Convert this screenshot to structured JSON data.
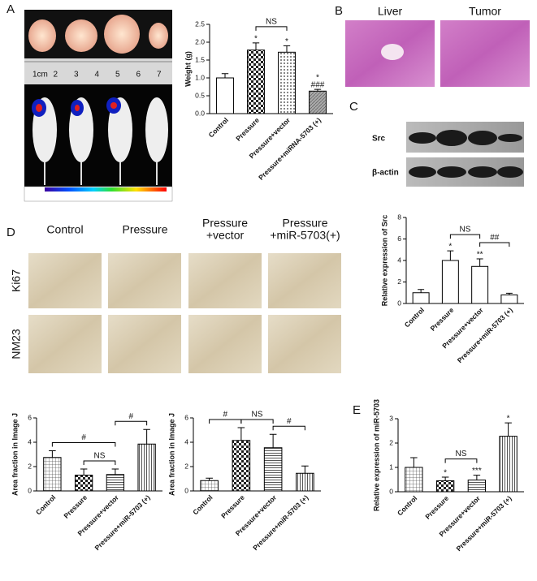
{
  "panel_labels": [
    "A",
    "B",
    "C",
    "D",
    "E"
  ],
  "ruler_labels": [
    "1cm",
    "2",
    "3",
    "4",
    "5",
    "6",
    "7"
  ],
  "histology_titles": [
    "Liver",
    "Tumor"
  ],
  "blot_labels": [
    "Src",
    "β-actin"
  ],
  "ihc_columns": [
    [
      "Control"
    ],
    [
      "Pressure"
    ],
    [
      "Pressure",
      "+vector"
    ],
    [
      "Pressure",
      "+miR-5703(+)"
    ]
  ],
  "ihc_rows": [
    "Ki67",
    "NM23"
  ],
  "chart_data": [
    {
      "type": "bar",
      "ylabel": "Weight (g)",
      "categories": [
        "Control",
        "Pressure",
        "Pressure+vector",
        "Pressure+miRNA-5703 (+)"
      ],
      "values": [
        1.0,
        1.78,
        1.72,
        0.63
      ],
      "errors": [
        0.12,
        0.2,
        0.18,
        0.05
      ],
      "patterns": [
        "white",
        "checker",
        "dots",
        "gray"
      ],
      "ylim": [
        0,
        2.5
      ],
      "yticks": [
        {
          "value": 0,
          "label": "0.0"
        },
        0.5,
        {
          "value": 1,
          "label": "1.0"
        },
        1.5,
        {
          "value": 2,
          "label": "2.0"
        },
        2.5
      ],
      "bar_labels": [
        null,
        [
          "*"
        ],
        [
          "*"
        ],
        [
          "*",
          "###"
        ]
      ],
      "brackets": [
        {
          "text": "NS",
          "from": 1,
          "to": 2
        }
      ]
    },
    {
      "type": "bar",
      "ylabel": "Relative expression of Src",
      "categories": [
        "Control",
        "Pressure",
        "Pressure+vector",
        "Pressure+miR-5703 (+)"
      ],
      "values": [
        1.0,
        4.0,
        3.45,
        0.8
      ],
      "errors": [
        0.3,
        0.9,
        0.7,
        0.15
      ],
      "patterns": [
        "white",
        "white",
        "white",
        "white"
      ],
      "ylim": [
        0,
        8
      ],
      "yticks": [
        0,
        2,
        4,
        6,
        8
      ],
      "bar_labels": [
        null,
        [
          "*"
        ],
        [
          "**"
        ],
        null
      ],
      "brackets": [
        {
          "text": "NS",
          "from": 1,
          "to": 2
        },
        {
          "text": "##",
          "from": 2,
          "to": 3
        }
      ]
    },
    {
      "type": "bar",
      "ylabel": "Area fraction in Image J",
      "categories": [
        "Control",
        "Pressure",
        "Pressure+vector",
        "Pressure+miR-5703 (+)"
      ],
      "values": [
        2.75,
        1.3,
        1.35,
        3.85
      ],
      "errors": [
        0.55,
        0.5,
        0.45,
        1.2
      ],
      "patterns": [
        "grid",
        "checker",
        "hlines",
        "vlines"
      ],
      "ylim": [
        0,
        6
      ],
      "yticks": [
        0,
        2,
        4,
        6
      ],
      "bar_labels": null,
      "brackets": [
        {
          "text": "NS",
          "from": 1,
          "to": 2
        },
        {
          "text": "#",
          "from": 0,
          "to": 2
        },
        {
          "text": "#",
          "from": 2,
          "to": 3
        }
      ]
    },
    {
      "type": "bar",
      "ylabel": "Area fraction in Image J",
      "categories": [
        "Control",
        "Pressure",
        "Pressure+vector",
        "Pressure+miR-5703 (+)"
      ],
      "values": [
        0.85,
        4.15,
        3.55,
        1.45
      ],
      "errors": [
        0.2,
        1.05,
        1.1,
        0.6
      ],
      "patterns": [
        "grid",
        "checker",
        "hlines",
        "vlines"
      ],
      "ylim": [
        0,
        6
      ],
      "yticks": [
        0,
        2,
        4,
        6
      ],
      "bar_labels": null,
      "brackets": [
        {
          "text": "NS",
          "from": 1,
          "to": 2
        },
        {
          "text": "#",
          "from": 0,
          "to": 1
        },
        {
          "text": "#",
          "from": 2,
          "to": 3
        }
      ]
    },
    {
      "type": "bar",
      "ylabel": "Relative expression of miR-5703",
      "categories": [
        "Control",
        "Pressure",
        "Pressure+vector",
        "Pressure+miR-5703 (+)"
      ],
      "values": [
        1.0,
        0.45,
        0.48,
        2.28
      ],
      "errors": [
        0.4,
        0.15,
        0.2,
        0.55
      ],
      "patterns": [
        "grid",
        "checker",
        "hlines",
        "vlines"
      ],
      "ylim": [
        0,
        3
      ],
      "yticks": [
        0,
        1,
        2,
        3
      ],
      "bar_labels": [
        null,
        [
          "*"
        ],
        [
          "***"
        ],
        [
          "*"
        ]
      ],
      "brackets": [
        {
          "text": "NS",
          "from": 1,
          "to": 2
        }
      ]
    }
  ]
}
